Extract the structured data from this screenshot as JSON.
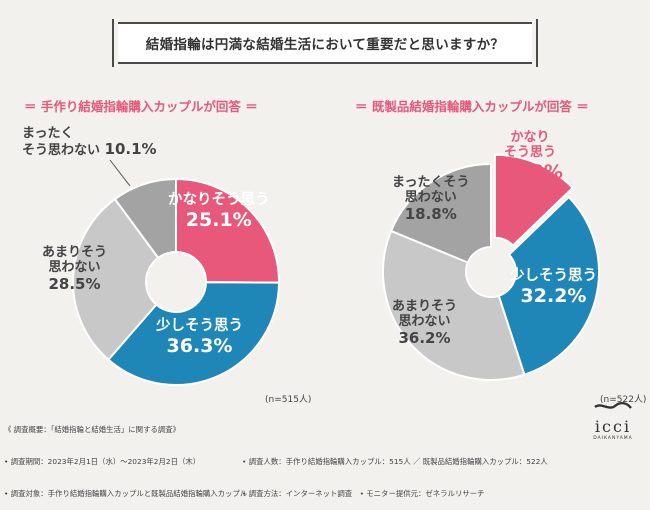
{
  "title": "結婚指輪は円満な結婚生活において重要だと思いますか？",
  "chart_data": [
    {
      "type": "pie",
      "title": "＝ 手作り結婚指輪購入カップルが回答 ＝",
      "categories": [
        "かなりそう思う",
        "少しそう思う",
        "あまりそう思わない",
        "まったくそう思わない"
      ],
      "values": [
        25.1,
        36.3,
        28.5,
        10.1
      ],
      "value_labels": [
        "25.1%",
        "36.3%",
        "28.5%",
        "10.1%"
      ],
      "colors": [
        "#e8587a",
        "#1f87b8",
        "#c8c8c8",
        "#a3a3a3"
      ],
      "n_label": "(n=515人)"
    },
    {
      "type": "pie",
      "title": "＝ 既製品結婚指輪購入カップルが回答 ＝",
      "categories": [
        "かなりそう思う",
        "少しそう思う",
        "あまりそう思わない",
        "まったくそう思わない"
      ],
      "values": [
        12.8,
        32.2,
        36.2,
        18.8
      ],
      "value_labels": [
        "12.8%",
        "32.2%",
        "36.2%",
        "18.8%"
      ],
      "colors": [
        "#e8587a",
        "#1f87b8",
        "#c8c8c8",
        "#a3a3a3"
      ],
      "n_label": "(n=522人)"
    }
  ],
  "left_labels": {
    "a1": "かなりそう思う",
    "b1": "少しそう思う",
    "c1": "あまりそう",
    "c2": "思わない",
    "d1": "まったく",
    "d2": "そう思わない"
  },
  "right_labels": {
    "a1": "かなり",
    "a2": "そう思う",
    "b1": "少しそう思う",
    "c1": "あまりそう",
    "c2": "思わない",
    "d1": "まったくそう",
    "d2": "思わない"
  },
  "footer": {
    "line1": "《 調査概要：「結婚指輪と結婚生活」に関する調査》",
    "line2a": "• 調査期間：2023年2月1日（水）～2023年2月2日（木）",
    "line2b": "• 調査人数：手作り結婚指輪購入カップル：515人 ／ 既製品結婚指輪購入カップル：522人",
    "line3a": "• 調査対象：手作り結婚指輪購入カップルと既製品結婚指輪購入カップル",
    "line3b": "• 調査方法：インターネット調査　• モニター提供元：ゼネラルリサーチ"
  },
  "logo": {
    "word": "icci",
    "sub": "DAIKANYAMA"
  }
}
